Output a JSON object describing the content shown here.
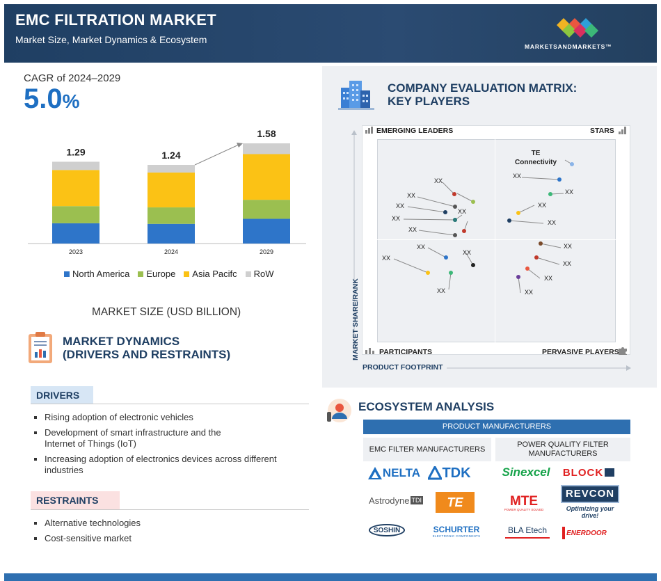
{
  "header": {
    "title": "EMC FILTRATION MARKET",
    "subtitle": "Market Size, Market Dynamics & Ecosystem",
    "brand": "MARKETSANDMARKETS™"
  },
  "cagr": {
    "label": "CAGR of 2024–2029",
    "value": "5.0",
    "unit": "%"
  },
  "chart_data": {
    "type": "bar",
    "categories": [
      "2023",
      "2024",
      "2029"
    ],
    "totals": [
      "1.29",
      "1.24",
      "1.58"
    ],
    "series": [
      {
        "name": "North America",
        "color": "#2e75c9",
        "values": [
          0.32,
          0.31,
          0.39
        ]
      },
      {
        "name": "Europe",
        "color": "#9bbf50",
        "values": [
          0.27,
          0.26,
          0.3
        ]
      },
      {
        "name": "Asia Pacifc",
        "color": "#fbc215",
        "values": [
          0.57,
          0.55,
          0.72
        ]
      },
      {
        "name": "RoW",
        "color": "#cfcfcf",
        "values": [
          0.13,
          0.12,
          0.17
        ]
      }
    ],
    "xlabel": "MARKET SIZE (USD BILLION)"
  },
  "market_dynamics": {
    "title_line1": "MARKET DYNAMICS",
    "title_line2": "(DRIVERS AND RESTRAINTS)",
    "drivers_label": "DRIVERS",
    "drivers": [
      "Rising adoption of electronic vehicles",
      "Development of smart infrastructure and the Internet of Things (IoT)",
      "Increasing adoption of electronics devices across different industries"
    ],
    "restraints_label": "RESTRAINTS",
    "restraints": [
      "Alternative technologies",
      "Cost-sensitive market"
    ]
  },
  "matrix": {
    "title_line1": "COMPANY EVALUATION MATRIX:",
    "title_line2": "KEY PLAYERS",
    "q_emerging": "EMERGING LEADERS",
    "q_stars": "STARS",
    "q_participants": "PARTICIPANTS",
    "q_pervasive": "PERVASIVE PLAYERS",
    "y_axis": "MARKET SHARE/RANK",
    "x_axis": "PRODUCT FOOTPRINT",
    "te_line1": "TE",
    "te_line2": "Connectivity",
    "placeholder": "XX"
  },
  "ecosystem": {
    "title": "ECOSYSTEM ANALYSIS",
    "bar": "PRODUCT MANUFACTURERS",
    "col1": "EMC FILTER MANUFACTURERS",
    "col2": "POWER QUALITY FILTER MANUFACTURERS",
    "logos": {
      "delta": "NELTA",
      "tdk": "TDK",
      "astrodyne": "Astrodyne",
      "tdi": "TDI",
      "te": "TE",
      "soshin": "SOSHIN",
      "schurter": "SCHURTER",
      "schurter_sub": "ELECTRONIC COMPONENTS",
      "sinexcel": "Sinexcel",
      "block": "BLOCK",
      "mte": "MTE",
      "mte_sub": "POWER QUALITY SOLVED",
      "revcon": "REVCON",
      "revcon_sub": "Optimizing your drive!",
      "bla": "BLA Etech",
      "enerdoor": "ENERDOOR"
    }
  },
  "colors": {
    "navy": "#1f3f63",
    "accent_blue": "#1e6fc2",
    "bar_blue": "#2e6fb0"
  }
}
